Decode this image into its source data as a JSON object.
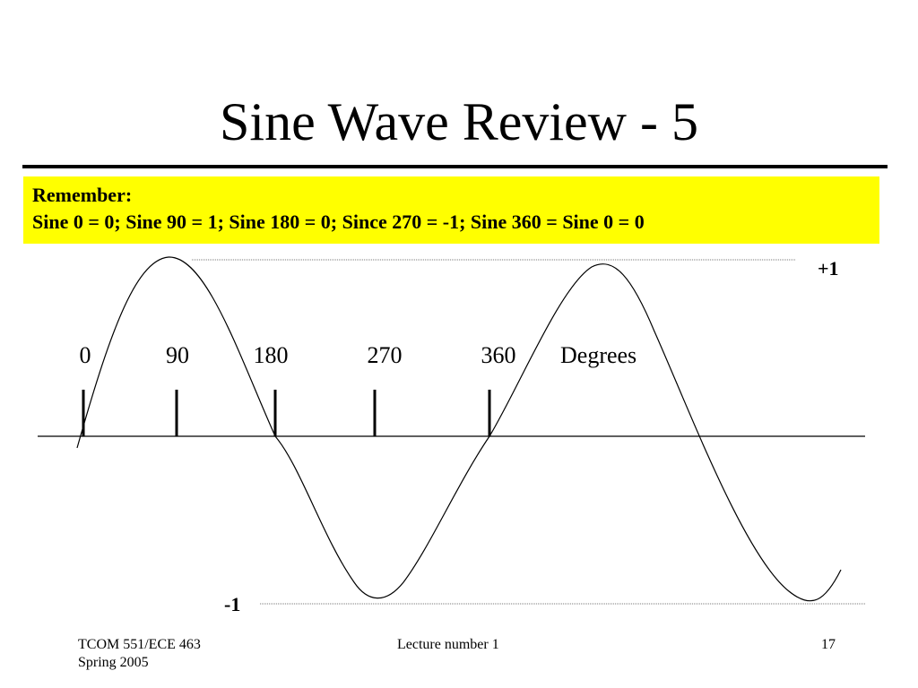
{
  "title": "Sine Wave Review - 5",
  "callout": {
    "heading": "Remember:",
    "text": "Sine 0 = 0; Sine 90 = 1; Sine 180 = 0; Since 270 = -1; Sine 360 = Sine 0 = 0"
  },
  "diagram": {
    "tick_labels": [
      "0",
      "90",
      "180",
      "270",
      "360"
    ],
    "axis_unit": "Degrees",
    "max_label": "+1",
    "min_label": "-1"
  },
  "footer": {
    "course": "TCOM 551/ECE 463",
    "term": "Spring 2005",
    "lecture": "Lecture number 1",
    "page_number": "17"
  }
}
